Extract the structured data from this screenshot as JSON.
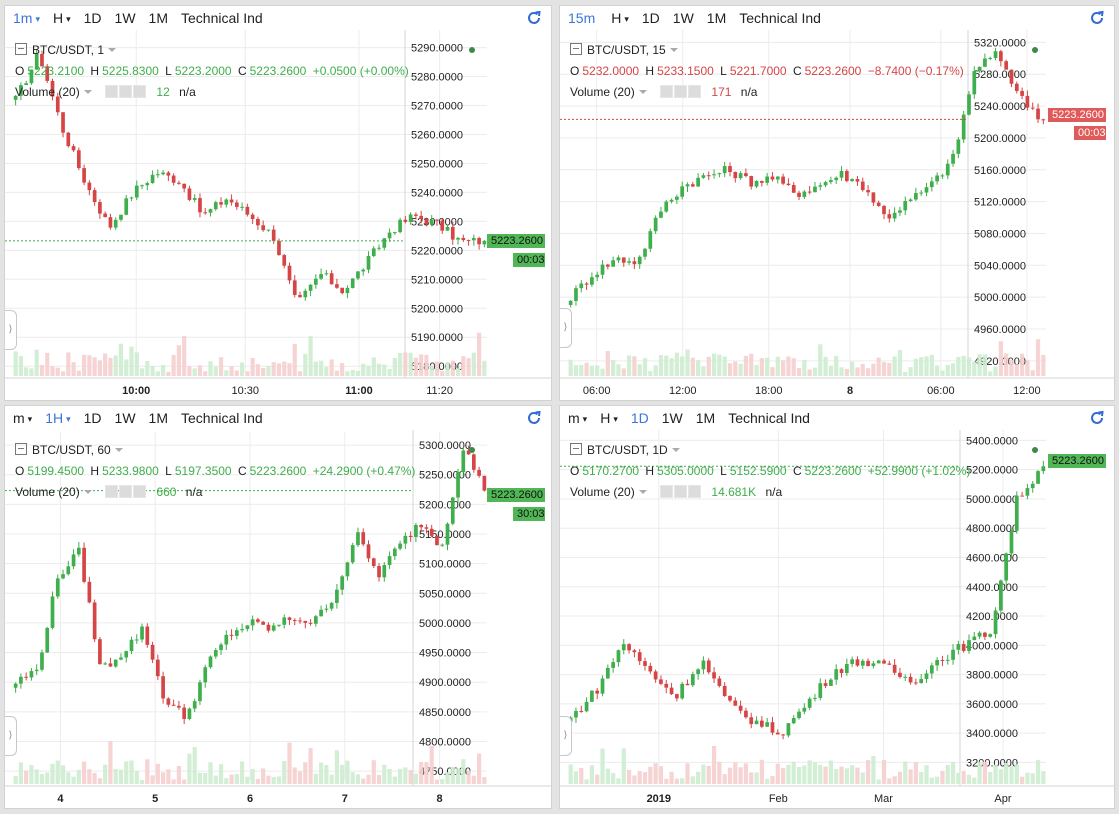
{
  "colors": {
    "up": "#3fae4c",
    "down": "#d64545",
    "accent": "#3c76d8"
  },
  "toolbar_common": {
    "day": "1D",
    "week": "1W",
    "month": "1M",
    "indicators": "Technical Ind",
    "hours": "H"
  },
  "panels": [
    {
      "interval": "1m",
      "interval_caret": "▾",
      "hours_caret": "▾",
      "symbol": "BTC/USDT, 1",
      "ohlc": {
        "o_label": "O",
        "o": "5223.2100",
        "h_label": "H",
        "h": "5225.8300",
        "l_label": "L",
        "l": "5223.2000",
        "c_label": "C",
        "c": "5223.2600",
        "change": "+0.0500 (+0.00%)",
        "dir": "up"
      },
      "volume_label": "Volume (20)",
      "volume_value": "12",
      "volume_na": "n/a",
      "last_price": "5223.2600",
      "countdown": "00:03",
      "y_ticks": [
        "5290.0000",
        "5280.0000",
        "5270.0000",
        "5260.0000",
        "5250.0000",
        "5240.0000",
        "5230.0000",
        "5220.0000",
        "5210.0000",
        "5200.0000",
        "5190.0000",
        "5180.0000"
      ],
      "x_ticks": [
        "10:00",
        "10:30",
        "11:00",
        "11:20"
      ]
    },
    {
      "interval": "15m",
      "interval_caret": "",
      "hours_caret": "▾",
      "symbol": "BTC/USDT, 15",
      "ohlc": {
        "o_label": "O",
        "o": "5232.0000",
        "h_label": "H",
        "h": "5233.1500",
        "l_label": "L",
        "l": "5221.7000",
        "c_label": "C",
        "c": "5223.2600",
        "change": "−8.7400 (−0.17%)",
        "dir": "down"
      },
      "volume_label": "Volume (20)",
      "volume_value": "171",
      "volume_na": "n/a",
      "last_price": "5223.2600",
      "countdown": "00:03",
      "y_ticks": [
        "5320.0000",
        "5280.0000",
        "5240.0000",
        "5200.0000",
        "5160.0000",
        "5120.0000",
        "5080.0000",
        "5040.0000",
        "5000.0000",
        "4960.0000",
        "4920.0000"
      ],
      "x_ticks": [
        "06:00",
        "12:00",
        "18:00",
        "8",
        "06:00",
        "12:00"
      ]
    },
    {
      "interval": "m",
      "interval_caret": "▾",
      "hours_caret": "▾",
      "active_hours": "1H",
      "symbol": "BTC/USDT, 60",
      "ohlc": {
        "o_label": "O",
        "o": "5199.4500",
        "h_label": "H",
        "h": "5233.9800",
        "l_label": "L",
        "l": "5197.3500",
        "c_label": "C",
        "c": "5223.2600",
        "change": "+24.2900 (+0.47%)",
        "dir": "up"
      },
      "volume_label": "Volume (20)",
      "volume_value": "660",
      "volume_na": "n/a",
      "last_price": "5223.2600",
      "countdown": "30:03",
      "y_ticks": [
        "5300.0000",
        "5250.0000",
        "5200.0000",
        "5150.0000",
        "5100.0000",
        "5050.0000",
        "5000.0000",
        "4950.0000",
        "4900.0000",
        "4850.0000",
        "4800.0000",
        "4750.0000"
      ],
      "x_ticks": [
        "4",
        "5",
        "6",
        "7",
        "8"
      ]
    },
    {
      "interval": "m",
      "interval_caret": "▾",
      "hours_caret": "▾",
      "symbol": "BTC/USDT, 1D",
      "ohlc": {
        "o_label": "O",
        "o": "5170.2700",
        "h_label": "H",
        "h": "5305.0000",
        "l_label": "L",
        "l": "5152.5900",
        "c_label": "C",
        "c": "5223.2600",
        "change": "+52.9900 (+1.02%)",
        "dir": "up"
      },
      "volume_label": "Volume (20)",
      "volume_value": "14.681K",
      "volume_na": "n/a",
      "last_price": "5223.2600",
      "countdown": "",
      "y_ticks": [
        "5400.0000",
        "5200.0000",
        "5000.0000",
        "4800.0000",
        "4600.0000",
        "4400.0000",
        "4200.0000",
        "4000.0000",
        "3800.0000",
        "3600.0000",
        "3400.0000",
        "3200.0000"
      ],
      "x_ticks": [
        "2019",
        "Feb",
        "Mar",
        "Apr"
      ]
    }
  ],
  "chart_data": [
    {
      "type": "candlestick",
      "title": "BTC/USDT, 1",
      "ylim": [
        5178,
        5294
      ],
      "x": [
        "10:00",
        "10:30",
        "11:00",
        "11:20"
      ],
      "close_path": [
        5272,
        5288,
        5262,
        5243,
        5228,
        5240,
        5247,
        5244,
        5232,
        5238,
        5232,
        5225,
        5201,
        5212,
        5206,
        5216,
        5227,
        5232,
        5229,
        5223,
        5223.26
      ]
    },
    {
      "type": "candlestick",
      "title": "BTC/USDT, 15",
      "ylim": [
        4906,
        5328
      ],
      "x": [
        "06:00",
        "12:00",
        "18:00",
        "8",
        "06:00",
        "12:00"
      ],
      "close_path": [
        5000,
        5030,
        5048,
        5045,
        5110,
        5140,
        5152,
        5160,
        5145,
        5150,
        5130,
        5140,
        5155,
        5140,
        5100,
        5120,
        5140,
        5175,
        5290,
        5305,
        5250,
        5223.26
      ]
    },
    {
      "type": "candlestick",
      "title": "BTC/USDT, 60",
      "ylim": [
        4735,
        5312
      ],
      "x": [
        "4",
        "5",
        "6",
        "7",
        "8"
      ],
      "close_path": [
        4900,
        4920,
        5080,
        5120,
        4920,
        4950,
        4990,
        4870,
        4840,
        4930,
        4980,
        5000,
        4990,
        5010,
        5000,
        5050,
        5150,
        5080,
        5130,
        5170,
        5130,
        5300,
        5223.26
      ]
    },
    {
      "type": "candlestick",
      "title": "BTC/USDT, 1D",
      "ylim": [
        3080,
        5430
      ],
      "x": [
        "2019",
        "Feb",
        "Mar",
        "Apr"
      ],
      "close_path": [
        3500,
        3700,
        4020,
        3820,
        3650,
        3900,
        3600,
        3480,
        3400,
        3600,
        3820,
        3900,
        3850,
        3750,
        3900,
        4000,
        4100,
        5000,
        5223.26
      ]
    }
  ]
}
